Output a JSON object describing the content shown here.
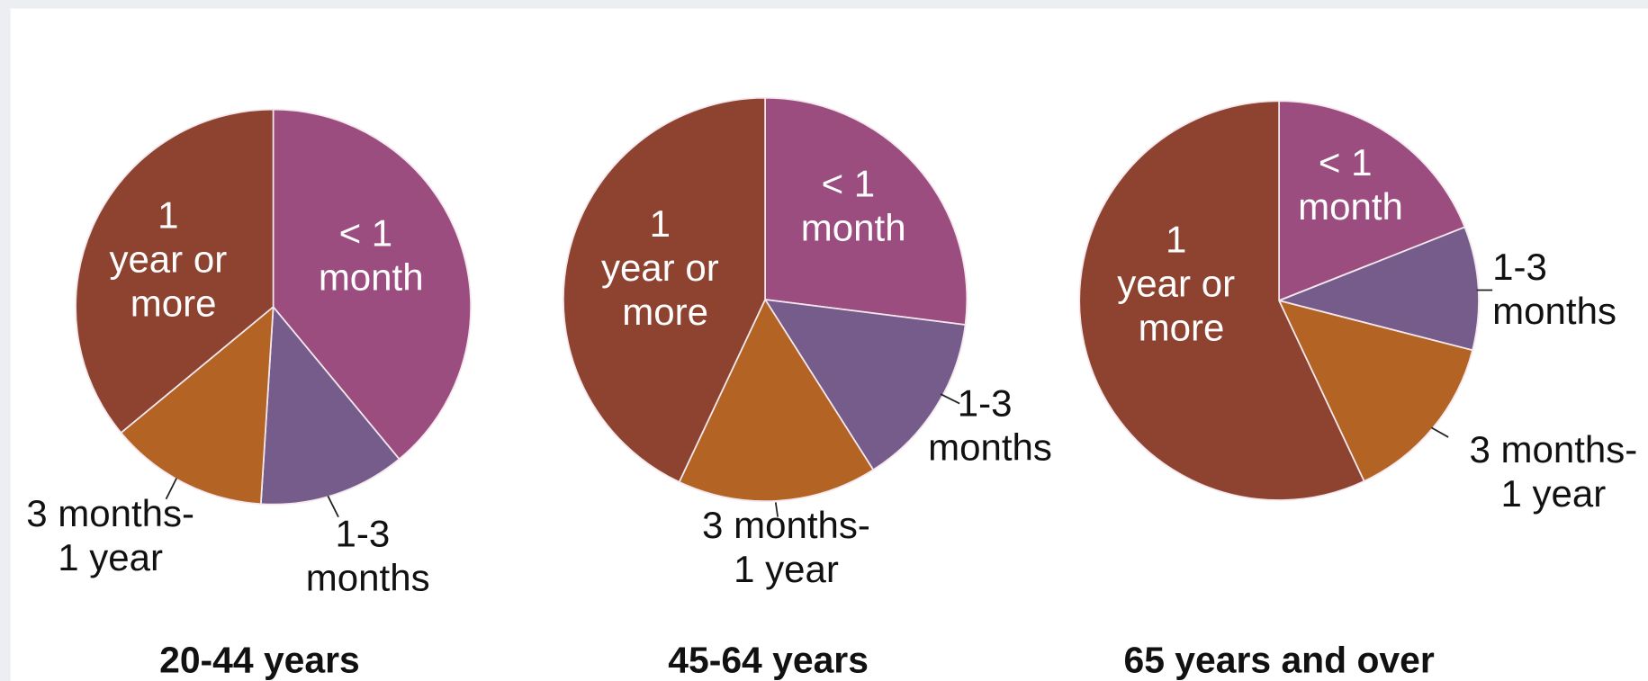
{
  "chart_data": [
    {
      "type": "pie",
      "title": "20-44 years",
      "categories": [
        "< 1 month",
        "1-3 months",
        "3 months-1 year",
        "1 year or more"
      ],
      "values": [
        39,
        12,
        13,
        36
      ],
      "colors": [
        "#9c4d80",
        "#765c8a",
        "#b36324",
        "#8e4330"
      ]
    },
    {
      "type": "pie",
      "title": "45-64 years",
      "categories": [
        "< 1 month",
        "1-3 months",
        "3 months-1 year",
        "1 year or more"
      ],
      "values": [
        27,
        14,
        16,
        43
      ],
      "colors": [
        "#9c4d80",
        "#765c8a",
        "#b36324",
        "#8e4330"
      ]
    },
    {
      "type": "pie",
      "title": "65 years and over",
      "categories": [
        "< 1 month",
        "1-3 months",
        "3 months-1 year",
        "1 year or more"
      ],
      "values": [
        19,
        10,
        14,
        57
      ],
      "colors": [
        "#9c4d80",
        "#765c8a",
        "#b36324",
        "#8e4330"
      ]
    }
  ]
}
